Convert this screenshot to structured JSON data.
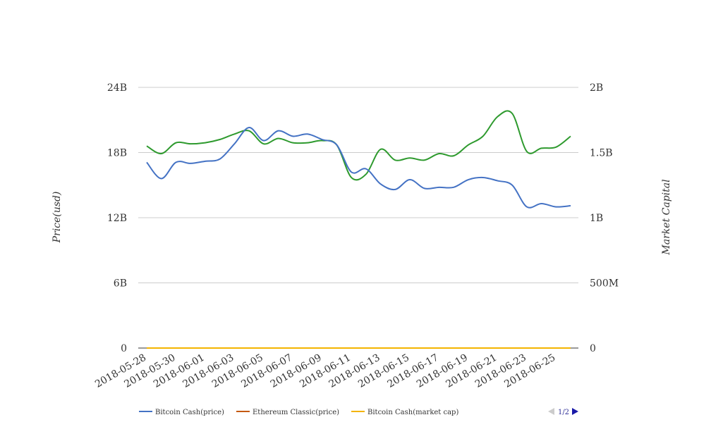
{
  "chart_data": {
    "type": "line",
    "title": "",
    "x": [
      "2018-05-28",
      "2018-05-29",
      "2018-05-30",
      "2018-05-31",
      "2018-06-01",
      "2018-06-02",
      "2018-06-03",
      "2018-06-04",
      "2018-06-05",
      "2018-06-06",
      "2018-06-07",
      "2018-06-08",
      "2018-06-09",
      "2018-06-10",
      "2018-06-11",
      "2018-06-12",
      "2018-06-13",
      "2018-06-14",
      "2018-06-15",
      "2018-06-16",
      "2018-06-17",
      "2018-06-18",
      "2018-06-19",
      "2018-06-20",
      "2018-06-21",
      "2018-06-22",
      "2018-06-23",
      "2018-06-24",
      "2018-06-25",
      "2018-06-26"
    ],
    "x_tick_labels": [
      "2018-05-28",
      "2018-05-30",
      "2018-06-01",
      "2018-06-03",
      "2018-06-05",
      "2018-06-07",
      "2018-06-09",
      "2018-06-11",
      "2018-06-13",
      "2018-06-15",
      "2018-06-17",
      "2018-06-19",
      "2018-06-21",
      "2018-06-23",
      "2018-06-25"
    ],
    "y_left": {
      "label": "Price(usd)",
      "range": [
        0,
        24000000000
      ],
      "ticks": [
        0,
        6000000000,
        12000000000,
        18000000000,
        24000000000
      ],
      "tick_labels": [
        "0",
        "6B",
        "12B",
        "18B",
        "24B"
      ]
    },
    "y_right": {
      "label": "Market Capital",
      "range": [
        0,
        2000000000
      ],
      "ticks": [
        0,
        500000000,
        1000000000,
        1500000000,
        2000000000
      ],
      "tick_labels": [
        "0",
        "500M",
        "1B",
        "1.5B",
        "2B"
      ]
    },
    "grid": true,
    "legend_position": "bottom-left",
    "legend_page": "1/2",
    "series": [
      {
        "name": "Bitcoin Cash(price)",
        "axis": "left",
        "color": "#4472c4",
        "values": [
          17100000000,
          15600000000,
          17100000000,
          17000000000,
          17200000000,
          17400000000,
          18800000000,
          20300000000,
          19100000000,
          20000000000,
          19500000000,
          19700000000,
          19200000000,
          18700000000,
          16200000000,
          16500000000,
          15100000000,
          14600000000,
          15500000000,
          14700000000,
          14800000000,
          14800000000,
          15500000000,
          15700000000,
          15400000000,
          15000000000,
          13000000000,
          13300000000,
          13000000000,
          13100000000
        ]
      },
      {
        "name": "Ethereum Classic(price)",
        "axis": "left",
        "color": "#c55a11",
        "values": [
          4000000,
          4000000,
          4000000,
          4000000,
          4000000,
          4000000,
          4000000,
          4000000,
          4000000,
          4000000,
          4000000,
          4000000,
          4000000,
          4000000,
          4000000,
          4000000,
          4000000,
          4000000,
          4000000,
          4000000,
          4000000,
          4000000,
          4000000,
          4000000,
          4000000,
          4000000,
          4000000,
          4000000,
          4000000,
          4000000
        ]
      },
      {
        "name": "Bitcoin Cash(market cap)",
        "axis": "left",
        "color": "#f4b400",
        "values": [
          2000000,
          2000000,
          2000000,
          2000000,
          2000000,
          2000000,
          2000000,
          2000000,
          2000000,
          2000000,
          2000000,
          2000000,
          2000000,
          2000000,
          2000000,
          2000000,
          2000000,
          2000000,
          2000000,
          2000000,
          2000000,
          2000000,
          2000000,
          2000000,
          2000000,
          2000000,
          2000000,
          2000000,
          2000000,
          2000000
        ]
      },
      {
        "axis": "left",
        "color": "#2e9a2e",
        "values": [
          18600000000,
          17900000000,
          18900000000,
          18800000000,
          18900000000,
          19200000000,
          19700000000,
          20000000000,
          18800000000,
          19300000000,
          18900000000,
          18900000000,
          19100000000,
          18700000000,
          15700000000,
          16000000000,
          18300000000,
          17300000000,
          17500000000,
          17300000000,
          17900000000,
          17700000000,
          18700000000,
          19500000000,
          21300000000,
          21600000000,
          18100000000,
          18400000000,
          18500000000,
          19500000000
        ]
      }
    ]
  }
}
